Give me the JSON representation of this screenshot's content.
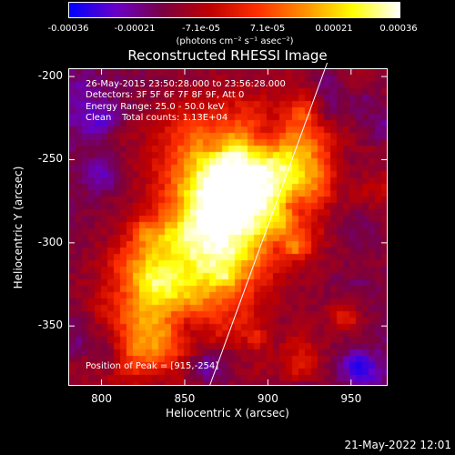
{
  "colorbar": {
    "tick_labels": [
      "-0.00036",
      "-0.00021",
      "-7.1e-05",
      "7.1e-05",
      "0.00021",
      "0.00036"
    ],
    "tick_values": [
      -0.00036,
      -0.00021,
      -7.1e-05,
      7.1e-05,
      0.00021,
      0.00036
    ],
    "range": [
      -0.00036,
      0.00036
    ],
    "units": "(photons cm⁻² s⁻¹ asec⁻²)",
    "colors": [
      "#0000ff",
      "#6a00c8",
      "#7a0040",
      "#c00000",
      "#ff3000",
      "#ff9000",
      "#ffff00",
      "#ffffff"
    ]
  },
  "chart_data": {
    "type": "heatmap",
    "title": "Reconstructed RHESSI Image",
    "xlabel": "Heliocentric X (arcsec)",
    "ylabel": "Heliocentric Y (arcsec)",
    "xlim": [
      780,
      972
    ],
    "ylim": [
      -386,
      -195
    ],
    "xticks": [
      800,
      850,
      900,
      950
    ],
    "yticks": [
      -200,
      -250,
      -300,
      -350
    ],
    "peak": [
      915,
      -254
    ],
    "annotations": {
      "time_range": "26-May-2015 23:50:28.000 to 23:56:28.000",
      "detectors": "Detectors: 3F 5F 6F 7F 8F 9F, Att 0",
      "energy": "Energy Range: 25.0 - 50.0 keV",
      "clean": "Clean",
      "counts": "Total counts: 1.13E+04",
      "peak_label": "Position of Peak = [915,-254]"
    },
    "limb_line": {
      "x": [
        865,
        928
      ],
      "y": [
        -386,
        -195
      ]
    }
  },
  "timestamp": "21-May-2022 12:01"
}
